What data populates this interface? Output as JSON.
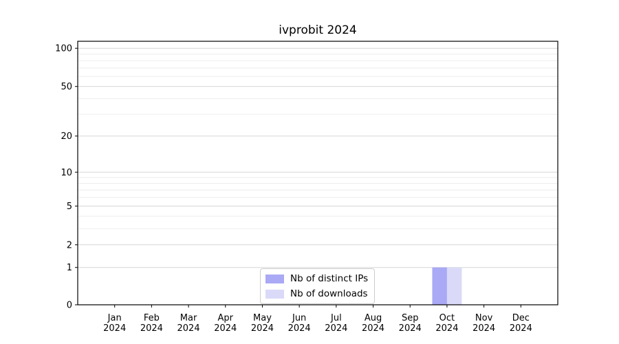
{
  "chart_data": {
    "type": "bar",
    "title": "ivprobit 2024",
    "categories": [
      "Jan 2024",
      "Feb 2024",
      "Mar 2024",
      "Apr 2024",
      "May 2024",
      "Jun 2024",
      "Jul 2024",
      "Aug 2024",
      "Sep 2024",
      "Oct 2024",
      "Nov 2024",
      "Dec 2024"
    ],
    "series": [
      {
        "name": "Nb of distinct IPs",
        "color": "#a9a9f5",
        "values": [
          0,
          0,
          0,
          0,
          0,
          0,
          0,
          0,
          0,
          1,
          0,
          0
        ]
      },
      {
        "name": "Nb of downloads",
        "color": "#dadaf8",
        "values": [
          0,
          0,
          0,
          0,
          0,
          0,
          0,
          0,
          0,
          1,
          0,
          0
        ]
      }
    ],
    "xlabel": "",
    "ylabel": "",
    "yscale": "log1p",
    "ylim": [
      0,
      115
    ],
    "y_major_ticks": [
      0,
      1,
      2,
      5,
      10,
      20,
      50,
      100
    ],
    "y_minor_ticks": [
      3,
      4,
      6,
      7,
      8,
      9,
      30,
      40,
      60,
      70,
      80,
      90
    ],
    "grid": true,
    "legend_position": "lower center",
    "colors": {
      "axis": "#000000",
      "grid_major": "#d6d6d6",
      "grid_minor": "#ededed",
      "background": "#ffffff"
    }
  }
}
